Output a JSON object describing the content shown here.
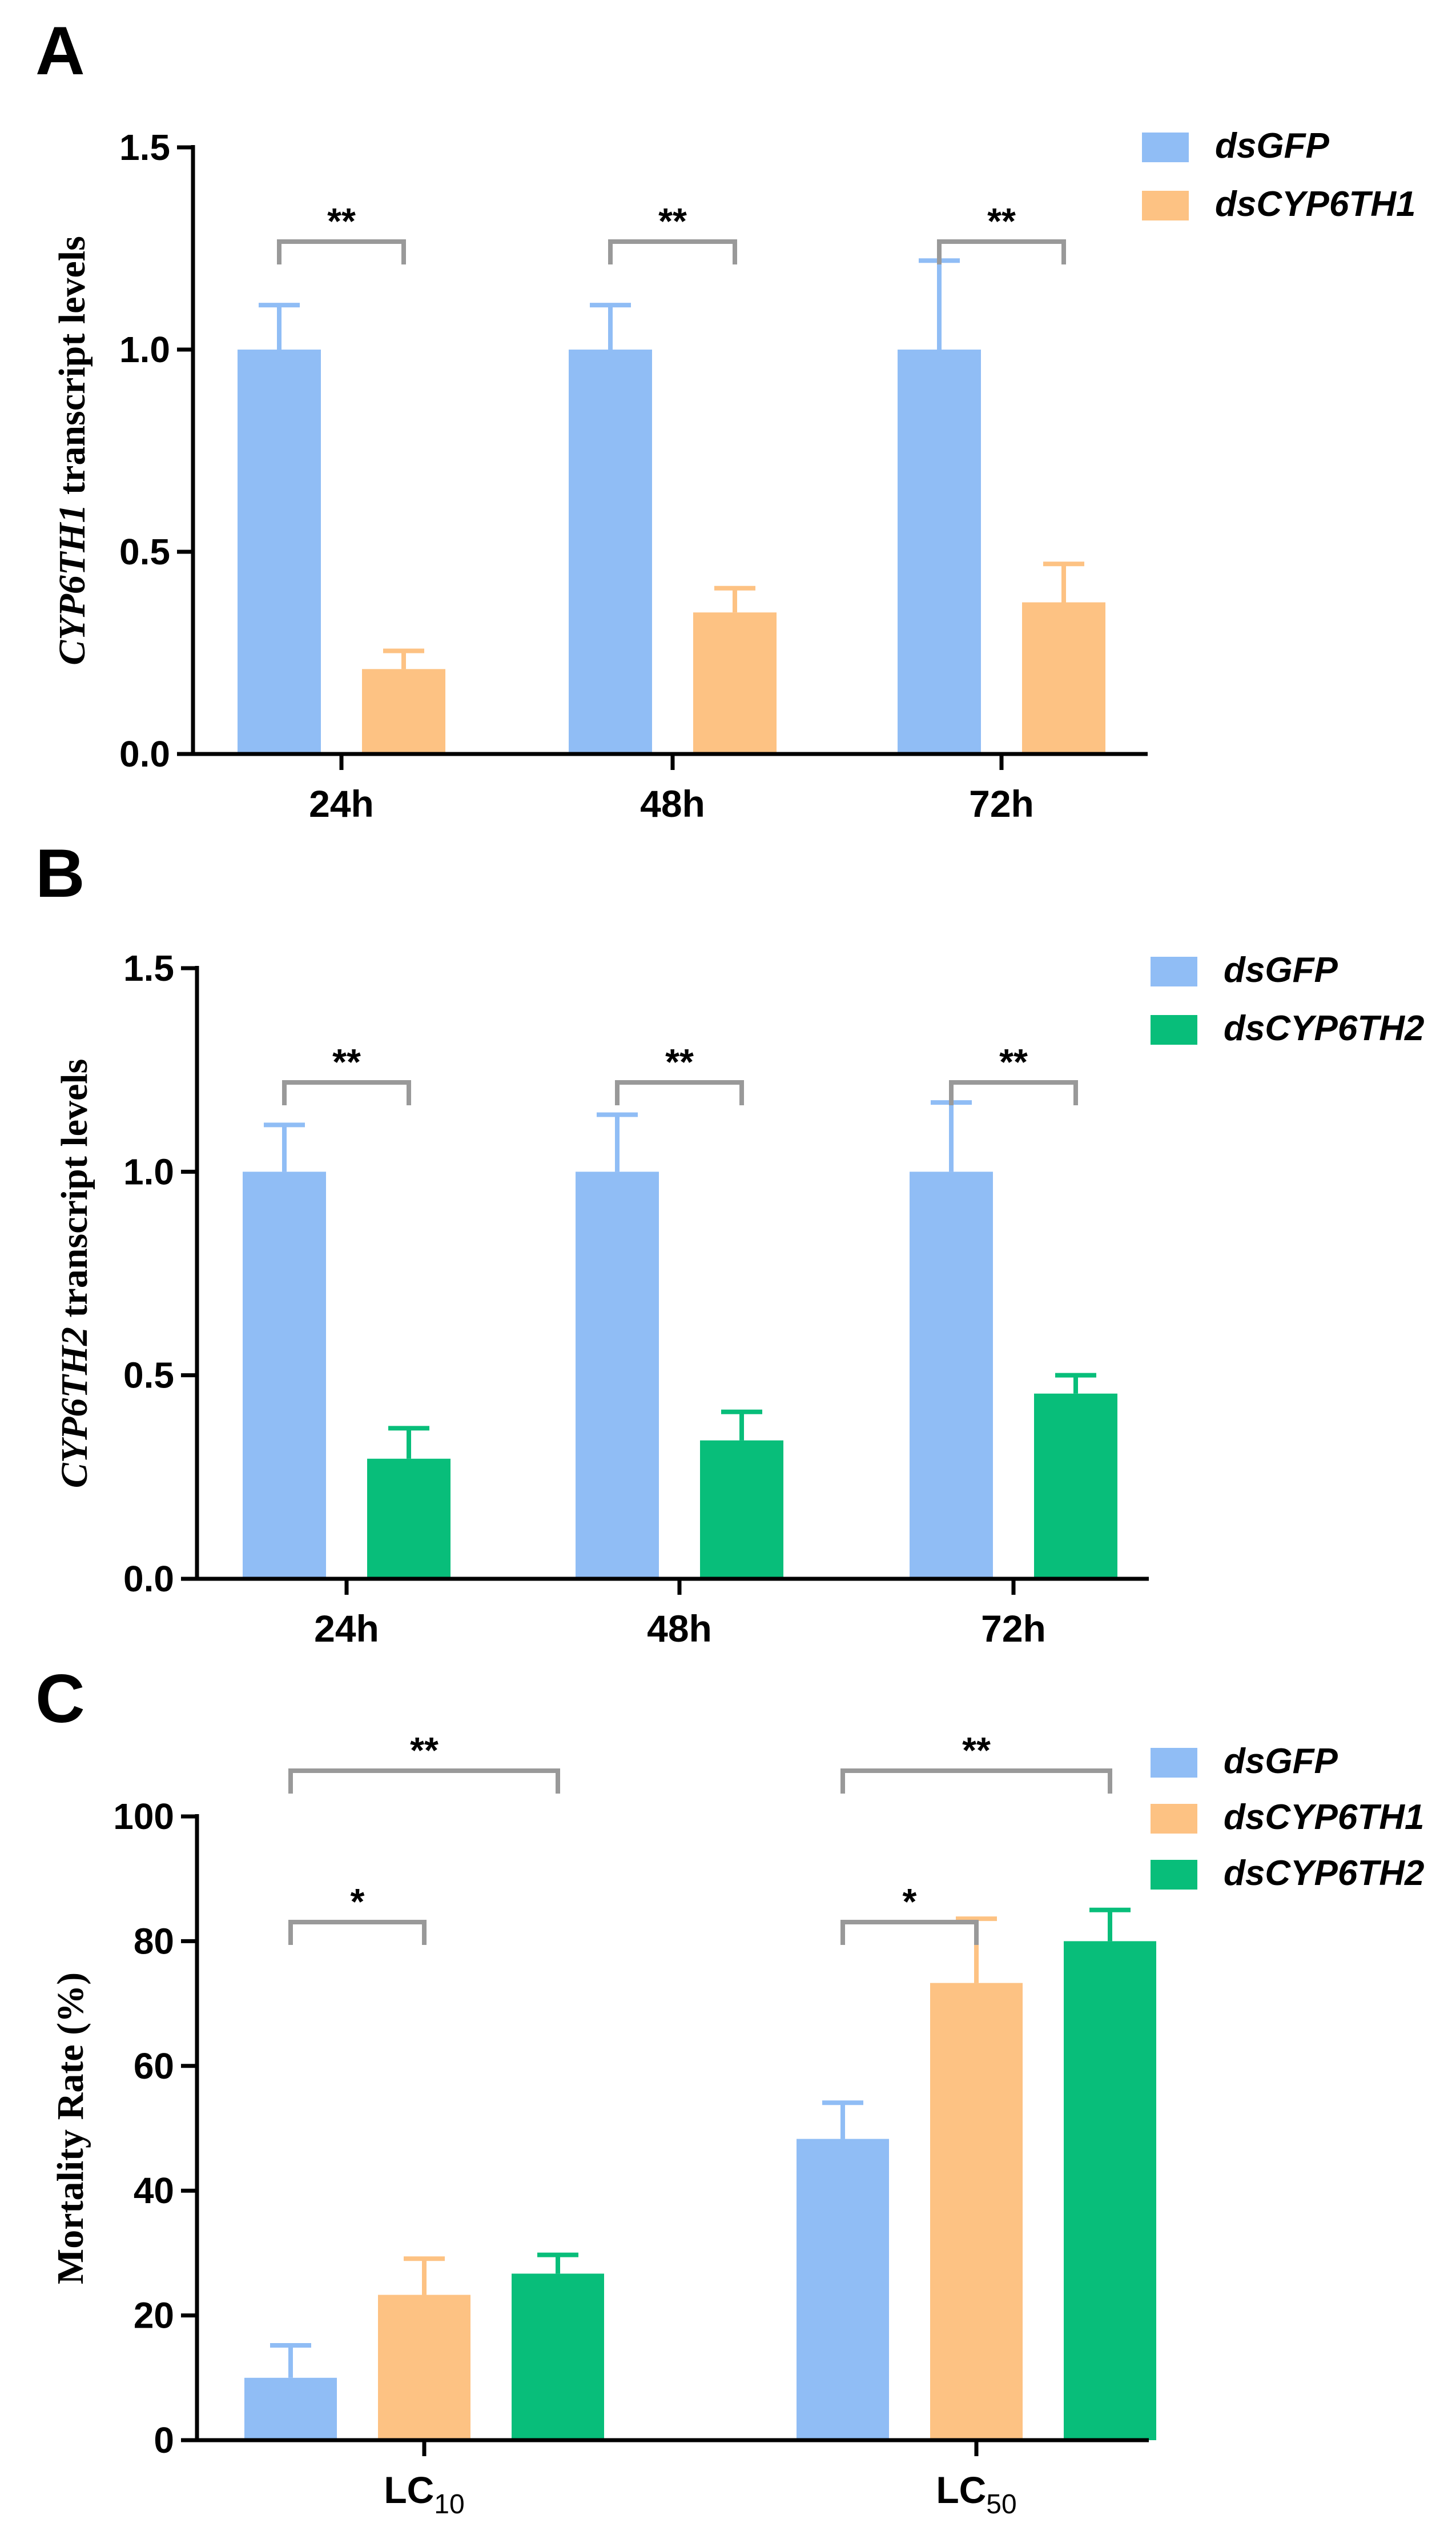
{
  "colors": {
    "dsGFP": "#90BDF5",
    "dsCYP6TH1": "#FDC283",
    "dsCYP6TH2": "#08BE7A",
    "bracket": "#999999",
    "axis": "#000000"
  },
  "chart_data": [
    {
      "panel_label": "A",
      "type": "bar",
      "categories": [
        "24h",
        "48h",
        "72h"
      ],
      "series": [
        {
          "name": "dsGFP",
          "values": [
            1.0,
            1.0,
            1.0
          ],
          "errors": [
            0.11,
            0.11,
            0.22
          ]
        },
        {
          "name": "dsCYP6TH1",
          "values": [
            0.21,
            0.35,
            0.375
          ],
          "errors": [
            0.045,
            0.06,
            0.095
          ]
        }
      ],
      "ylabel_italic": "CYP6TH1",
      "ylabel_rest": " transcript levels",
      "ylim": [
        0,
        1.5
      ],
      "yticks": [
        "0.0",
        "0.5",
        "1.0",
        "1.5"
      ],
      "significance": [
        {
          "category": 0,
          "from": 0,
          "to": 1,
          "label": "**"
        },
        {
          "category": 1,
          "from": 0,
          "to": 1,
          "label": "**"
        },
        {
          "category": 2,
          "from": 0,
          "to": 1,
          "label": "**"
        }
      ],
      "legend": [
        "dsGFP",
        "dsCYP6TH1"
      ]
    },
    {
      "panel_label": "B",
      "type": "bar",
      "categories": [
        "24h",
        "48h",
        "72h"
      ],
      "series": [
        {
          "name": "dsGFP",
          "values": [
            1.0,
            1.0,
            1.0
          ],
          "errors": [
            0.115,
            0.14,
            0.17
          ]
        },
        {
          "name": "dsCYP6TH2",
          "values": [
            0.295,
            0.34,
            0.455
          ],
          "errors": [
            0.075,
            0.07,
            0.045
          ]
        }
      ],
      "ylabel_italic": "CYP6TH2",
      "ylabel_rest": " transcript levels",
      "ylim": [
        0,
        1.5
      ],
      "yticks": [
        "0.0",
        "0.5",
        "1.0",
        "1.5"
      ],
      "significance": [
        {
          "category": 0,
          "from": 0,
          "to": 1,
          "label": "**"
        },
        {
          "category": 1,
          "from": 0,
          "to": 1,
          "label": "**"
        },
        {
          "category": 2,
          "from": 0,
          "to": 1,
          "label": "**"
        }
      ],
      "legend": [
        "dsGFP",
        "dsCYP6TH2"
      ]
    },
    {
      "panel_label": "C",
      "type": "bar",
      "categories": [
        {
          "main": "LC",
          "sub": "10"
        },
        {
          "main": "LC",
          "sub": "50"
        }
      ],
      "series": [
        {
          "name": "dsGFP",
          "values": [
            10.0,
            48.3
          ],
          "errors": [
            5.2,
            5.8
          ]
        },
        {
          "name": "dsCYP6TH1",
          "values": [
            23.3,
            73.3
          ],
          "errors": [
            5.8,
            10.3
          ]
        },
        {
          "name": "dsCYP6TH2",
          "values": [
            26.7,
            80.0
          ],
          "errors": [
            3.0,
            5.0
          ]
        }
      ],
      "ylabel_italic": "",
      "ylabel_rest": "Mortality Rate (%)",
      "ylim": [
        0,
        100
      ],
      "yticks": [
        "0",
        "20",
        "40",
        "60",
        "80",
        "100"
      ],
      "significance": [
        {
          "category": 0,
          "from": 0,
          "to": 1,
          "label": "*"
        },
        {
          "category": 0,
          "from": 0,
          "to": 2,
          "label": "**"
        },
        {
          "category": 1,
          "from": 0,
          "to": 1,
          "label": "*"
        },
        {
          "category": 1,
          "from": 0,
          "to": 2,
          "label": "**"
        }
      ],
      "legend": [
        "dsGFP",
        "dsCYP6TH1",
        "dsCYP6TH2"
      ]
    }
  ]
}
